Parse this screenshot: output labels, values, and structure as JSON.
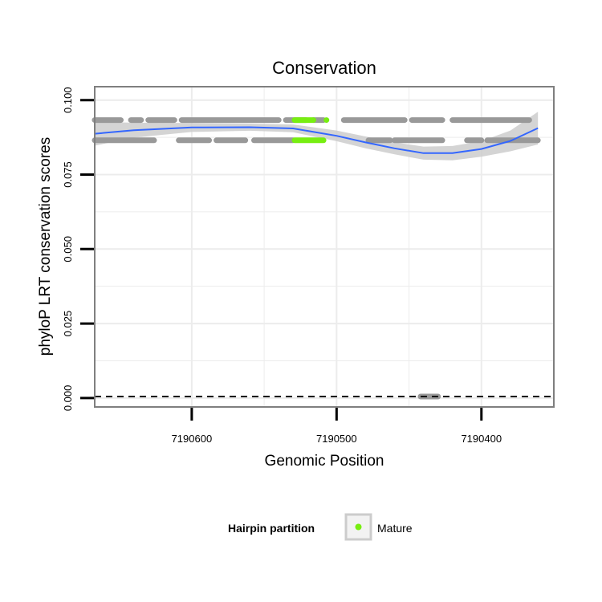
{
  "chart_data": {
    "type": "scatter",
    "title": "Conservation",
    "xlabel": "Genomic Position",
    "ylabel": "phyloP LRT conservation scores",
    "x_reversed": true,
    "xlim": [
      7190667,
      7190350
    ],
    "ylim": [
      -0.003,
      0.1045
    ],
    "x_ticks": [
      7190600,
      7190500,
      7190400
    ],
    "x_tick_labels": [
      "7190600",
      "7190500",
      "7190400"
    ],
    "y_ticks": [
      0.0,
      0.025,
      0.05,
      0.075,
      0.1
    ],
    "y_tick_labels": [
      "0.000",
      "0.025",
      "0.050",
      "0.075",
      "0.100"
    ],
    "grid": true,
    "reference_line": {
      "y": 0.0005,
      "style": "dashed"
    },
    "colors": {
      "points": "#999999",
      "mature": "#77ee11",
      "smooth": "#3366ff",
      "band": "#cccccc",
      "grid": "#ececec",
      "frame": "#7f7f7f"
    },
    "series": [
      {
        "role": "points",
        "segments": [
          {
            "x": [
              7190667,
              7190649
            ],
            "y": 0.0933
          },
          {
            "x": [
              7190642,
              7190635
            ],
            "y": 0.0933
          },
          {
            "x": [
              7190630,
              7190612
            ],
            "y": 0.0933
          },
          {
            "x": [
              7190607,
              7190540
            ],
            "y": 0.0933
          },
          {
            "x": [
              7190535,
              7190521
            ],
            "y": 0.0933
          },
          {
            "x": [
              7190516,
              7190509
            ],
            "y": 0.0933
          },
          {
            "x": [
              7190495,
              7190453
            ],
            "y": 0.0933
          },
          {
            "x": [
              7190448,
              7190427
            ],
            "y": 0.0933
          },
          {
            "x": [
              7190420,
              7190367
            ],
            "y": 0.0933
          },
          {
            "x": [
              7190667,
              7190626
            ],
            "y": 0.0865
          },
          {
            "x": [
              7190609,
              7190588
            ],
            "y": 0.0865
          },
          {
            "x": [
              7190583,
              7190563
            ],
            "y": 0.0865
          },
          {
            "x": [
              7190557,
              7190530
            ],
            "y": 0.0865
          },
          {
            "x": [
              7190478,
              7190463
            ],
            "y": 0.0865
          },
          {
            "x": [
              7190460,
              7190427
            ],
            "y": 0.0865
          },
          {
            "x": [
              7190410,
              7190400
            ],
            "y": 0.0865
          },
          {
            "x": [
              7190396,
              7190361
            ],
            "y": 0.0865
          },
          {
            "x": [
              7190442,
              7190430
            ],
            "y": 0.0005
          }
        ]
      },
      {
        "name": "Mature",
        "role": "mature",
        "segments": [
          {
            "x": [
              7190529,
              7190516
            ],
            "y": 0.0933
          },
          {
            "x": [
              7190507,
              7190507
            ],
            "y": 0.0933
          },
          {
            "x": [
              7190529,
              7190509
            ],
            "y": 0.0865
          }
        ]
      }
    ],
    "smooth": {
      "method": "loess",
      "x": [
        7190667,
        7190640,
        7190600,
        7190560,
        7190530,
        7190500,
        7190480,
        7190460,
        7190440,
        7190420,
        7190400,
        7190380,
        7190361
      ],
      "y": [
        0.0887,
        0.0899,
        0.0908,
        0.0909,
        0.0905,
        0.088,
        0.0858,
        0.0838,
        0.0822,
        0.0822,
        0.0836,
        0.0863,
        0.0906
      ],
      "se_half_width": [
        0.004,
        0.0025,
        0.0015,
        0.0012,
        0.0013,
        0.0018,
        0.002,
        0.002,
        0.0022,
        0.0024,
        0.0026,
        0.0035,
        0.0055
      ]
    },
    "legend": {
      "title": "Hairpin partition",
      "position": "bottom",
      "entries": [
        "Mature"
      ]
    }
  }
}
